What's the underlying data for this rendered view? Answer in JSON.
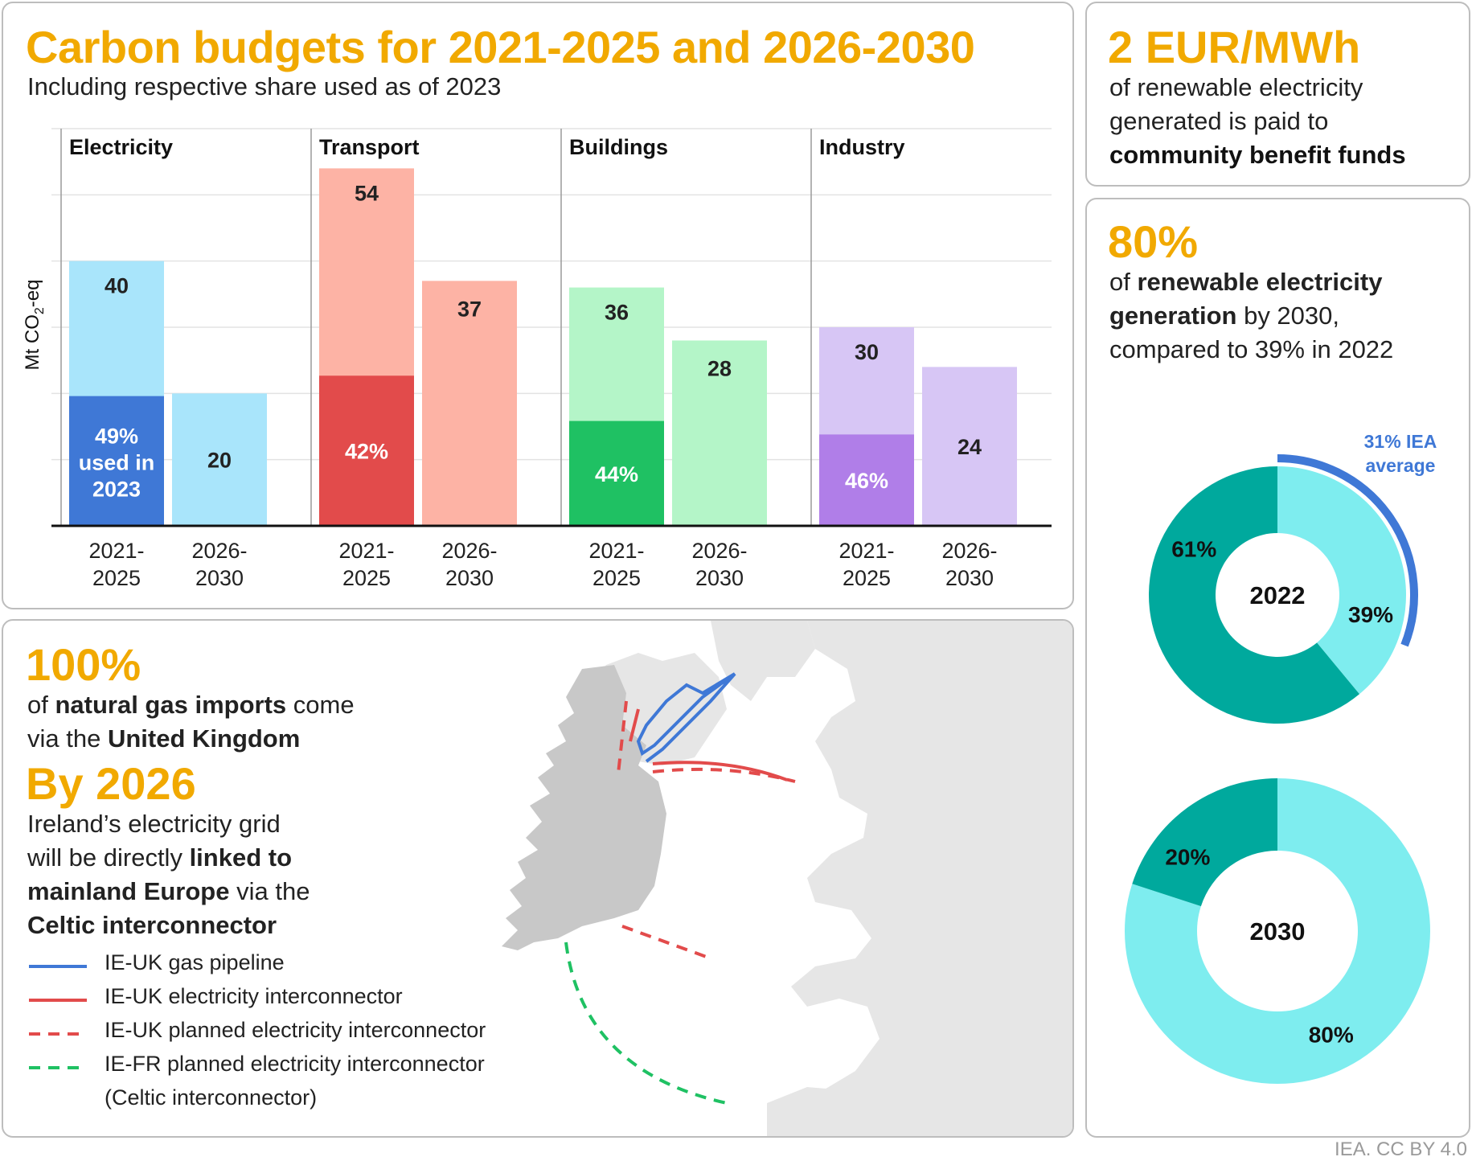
{
  "budgets": {
    "title": "Carbon budgets for 2021-2025 and 2026-2030",
    "subtitle": "Including respective share used as of 2023"
  },
  "chart_data": [
    {
      "type": "bar",
      "title": "Carbon budgets for 2021-2025 and 2026-2030",
      "subtitle": "Including respective share used as of 2023",
      "ylabel": "Mt CO2-eq",
      "xlabel": "",
      "ylim": [
        0,
        60
      ],
      "grid": true,
      "groups": [
        {
          "name": "Electricity",
          "light_color": "#a9e5fb",
          "dark_color": "#3f78d6",
          "bars": [
            {
              "period": [
                "2021-",
                "2025"
              ],
              "value": 40,
              "label": "40",
              "used_share": 0.49,
              "used_label": [
                "49%",
                "used in",
                "2023"
              ]
            },
            {
              "period": [
                "2026-",
                "2030"
              ],
              "value": 20,
              "label": "20"
            }
          ]
        },
        {
          "name": "Transport",
          "light_color": "#fdb3a5",
          "dark_color": "#e24b4b",
          "bars": [
            {
              "period": [
                "2021-",
                "2025"
              ],
              "value": 54,
              "label": "54",
              "used_share": 0.42,
              "used_label": [
                "42%"
              ]
            },
            {
              "period": [
                "2026-",
                "2030"
              ],
              "value": 37,
              "label": "37"
            }
          ]
        },
        {
          "name": "Buildings",
          "light_color": "#b4f5c8",
          "dark_color": "#1fc163",
          "bars": [
            {
              "period": [
                "2021-",
                "2025"
              ],
              "value": 36,
              "label": "36",
              "used_share": 0.44,
              "used_label": [
                "44%"
              ]
            },
            {
              "period": [
                "2026-",
                "2030"
              ],
              "value": 28,
              "label": "28"
            }
          ]
        },
        {
          "name": "Industry",
          "light_color": "#d7c6f5",
          "dark_color": "#b07ee8",
          "bars": [
            {
              "period": [
                "2021-",
                "2025"
              ],
              "value": 30,
              "label": "30",
              "used_share": 0.46,
              "used_label": [
                "46%"
              ]
            },
            {
              "period": [
                "2026-",
                "2030"
              ],
              "value": 24,
              "label": "24"
            }
          ]
        }
      ]
    },
    {
      "type": "pie",
      "center_label": "2022",
      "slices": [
        {
          "value": 61,
          "label": "61%",
          "color": "#00a99d"
        },
        {
          "value": 39,
          "label": "39%",
          "color": "#7eedef"
        }
      ],
      "annotation": {
        "value": 31,
        "label": [
          "31% IEA",
          "average"
        ],
        "color": "#3f78d6"
      }
    },
    {
      "type": "pie",
      "center_label": "2030",
      "slices": [
        {
          "value": 20,
          "label": "20%",
          "color": "#00a99d"
        },
        {
          "value": 80,
          "label": "80%",
          "color": "#7eedef"
        }
      ]
    }
  ],
  "eur": {
    "big": "2 EUR/MWh",
    "line1": "of renewable electricity",
    "line2": "generated is paid to",
    "line3": "community benefit funds"
  },
  "renew": {
    "big": "80%",
    "l1a": "of ",
    "l1b": "renewable electricity",
    "l2a": "generation",
    "l2b": " by 2030,",
    "l3": "compared to 39% in 2022"
  },
  "gas": {
    "big": "100%",
    "l1a": "of ",
    "l1b": "natural gas imports",
    "l1c": " come",
    "l2a": "via the ",
    "l2b": "United Kingdom"
  },
  "grid": {
    "big": "By 2026",
    "l1": "Ireland’s electricity grid",
    "l2a": "will be directly ",
    "l2b": "linked to",
    "l3a": "mainland Europe",
    "l3b": " via the",
    "l4": "Celtic interconnector"
  },
  "legend": [
    {
      "label": "IE-UK gas pipeline",
      "color": "#3f78d6",
      "dashed": false
    },
    {
      "label": "IE-UK electricity interconnector",
      "color": "#e24b4b",
      "dashed": false
    },
    {
      "label": "IE-UK planned electricity interconnector",
      "color": "#e24b4b",
      "dashed": true
    },
    {
      "label": "IE-FR planned electricity interconnector",
      "color": "#1fc163",
      "dashed": true
    }
  ],
  "legend_note": "(Celtic interconnector)",
  "credit": "IEA. CC BY 4.0"
}
